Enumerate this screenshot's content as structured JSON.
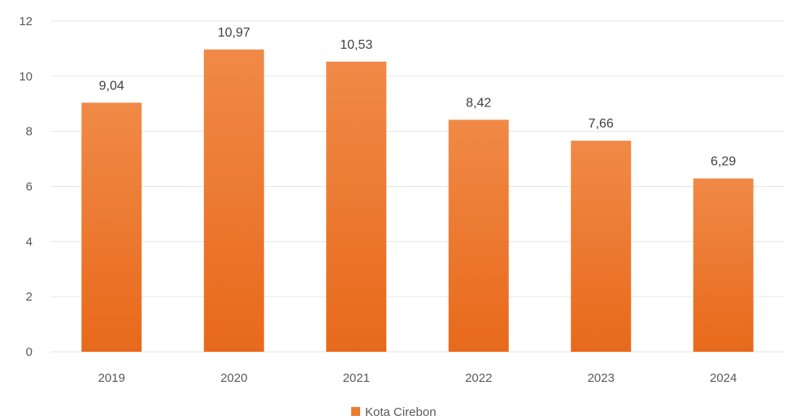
{
  "chart_data": {
    "type": "bar",
    "categories": [
      "2019",
      "2020",
      "2021",
      "2022",
      "2023",
      "2024"
    ],
    "series": [
      {
        "name": "Kota Cirebon",
        "values": [
          9.04,
          10.97,
          10.53,
          8.42,
          7.66,
          6.29
        ],
        "color": "#ed7d31"
      }
    ],
    "data_labels": [
      "9,04",
      "10,97",
      "10,53",
      "8,42",
      "7,66",
      "6,29"
    ],
    "ylim": [
      0,
      12
    ],
    "yticks": [
      0,
      2,
      4,
      6,
      8,
      10,
      12
    ],
    "grid": true,
    "legend": {
      "position": "bottom"
    },
    "title": "",
    "xlabel": "",
    "ylabel": ""
  }
}
